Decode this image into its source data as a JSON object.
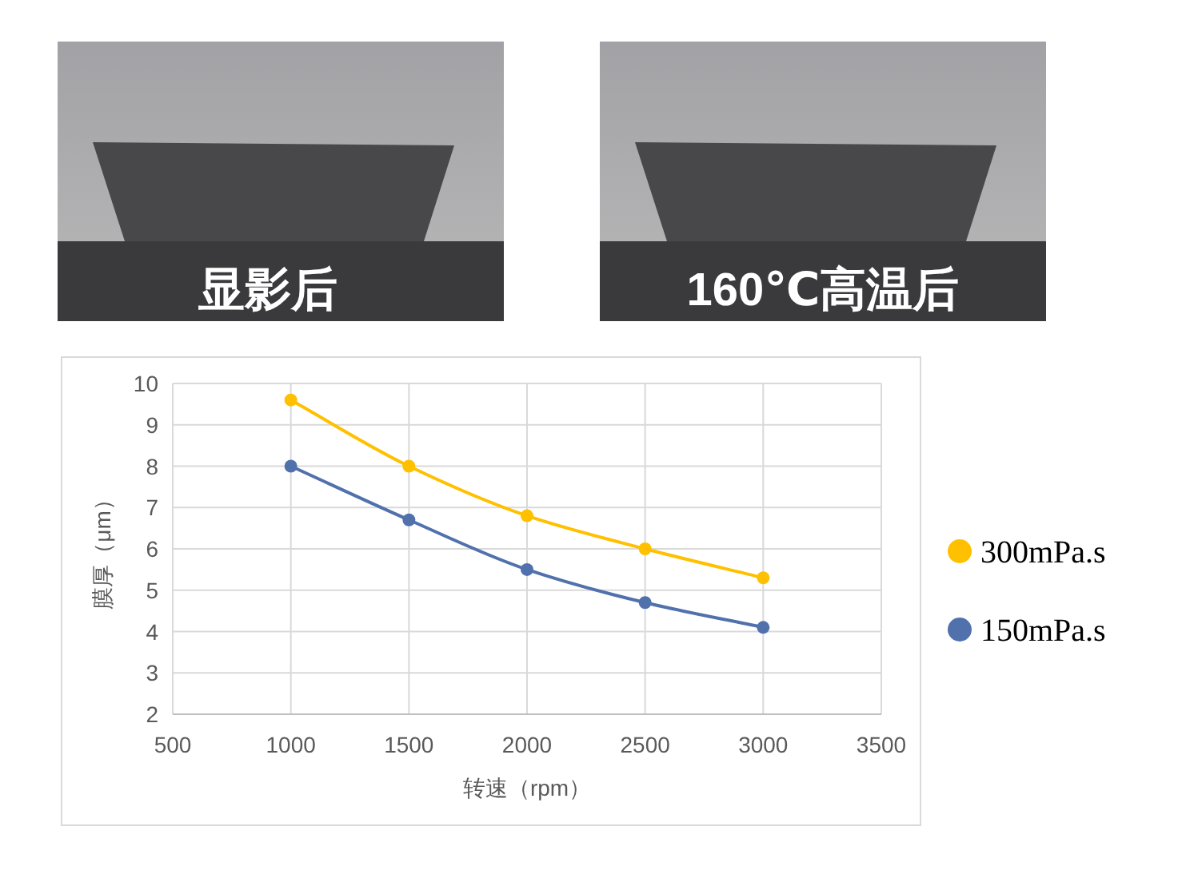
{
  "chart_data": {
    "type": "line",
    "xlabel": "转速（rpm）",
    "ylabel": "膜厚（μm）",
    "x": [
      1000,
      1500,
      2000,
      2500,
      3000
    ],
    "series": [
      {
        "name": "300mPa.s",
        "color": "#ffc000",
        "values": [
          9.6,
          8.0,
          6.8,
          6.0,
          5.3
        ]
      },
      {
        "name": "150mPa.s",
        "color": "#5171ad",
        "values": [
          8.0,
          6.7,
          5.5,
          4.7,
          4.1
        ]
      }
    ],
    "xlim": [
      500,
      3500
    ],
    "xticks": [
      500,
      1000,
      1500,
      2000,
      2500,
      3000,
      3500
    ],
    "ylim": [
      2,
      10
    ],
    "yticks": [
      2,
      3,
      4,
      5,
      6,
      7,
      8,
      9,
      10
    ],
    "grid": true,
    "legend": "right",
    "marker": "circle",
    "annotations": [
      "显影后",
      "160℃高温后"
    ]
  }
}
